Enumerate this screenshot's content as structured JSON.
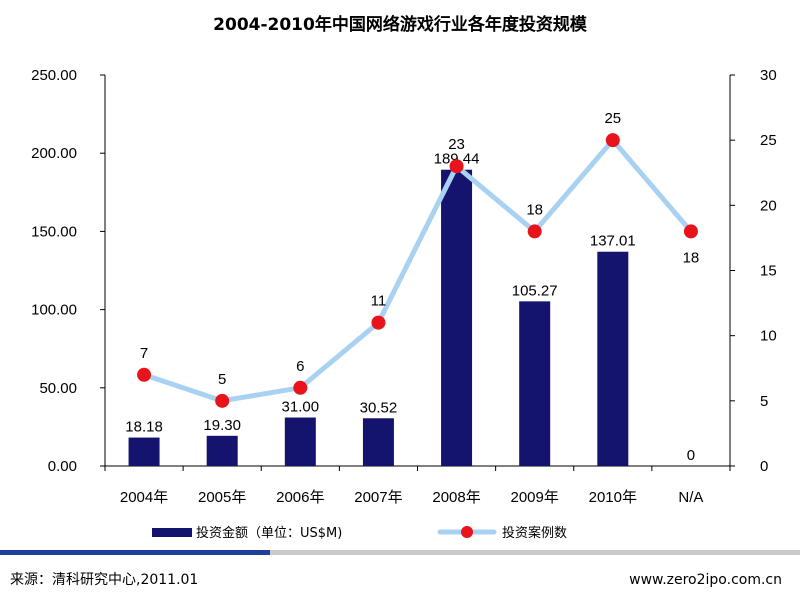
{
  "chart_data": {
    "type": "bar",
    "title": "2004-2010年中国网络游戏行业各年度投资规模",
    "categories": [
      "2004年",
      "2005年",
      "2006年",
      "2007年",
      "2008年",
      "2009年",
      "2010年",
      "N/A"
    ],
    "series": [
      {
        "name": "投资金额（单位：US$M)",
        "type": "bar",
        "axis": "left",
        "values": [
          18.18,
          19.3,
          31.0,
          30.52,
          189.44,
          105.27,
          137.01,
          0
        ],
        "labels": [
          "18.18",
          "19.30",
          "31.00",
          "30.52",
          "189.44",
          "105.27",
          "137.01",
          "0"
        ],
        "color": "#14146e"
      },
      {
        "name": "投资案例数",
        "type": "line",
        "axis": "right",
        "values": [
          7,
          5,
          6,
          11,
          23,
          18,
          25,
          18
        ],
        "labels": [
          "7",
          "5",
          "6",
          "11",
          "23",
          "18",
          "25",
          "18"
        ],
        "color": "#a9d2f2",
        "marker_color": "#e8141b"
      }
    ],
    "y_left": {
      "ylim": [
        0,
        250
      ],
      "ticks": [
        "0.00",
        "50.00",
        "100.00",
        "150.00",
        "200.00",
        "250.00"
      ]
    },
    "y_right": {
      "ylim": [
        0,
        30
      ],
      "ticks": [
        "0",
        "5",
        "10",
        "15",
        "20",
        "25",
        "30"
      ]
    },
    "grid": false,
    "legend_placement": "bottom"
  },
  "footer": {
    "source": "来源：清科研究中心,2011.01",
    "website": "www.zero2ipo.com.cn",
    "bar_colors": [
      "#1f3f9a",
      "#c9c9c9"
    ]
  }
}
